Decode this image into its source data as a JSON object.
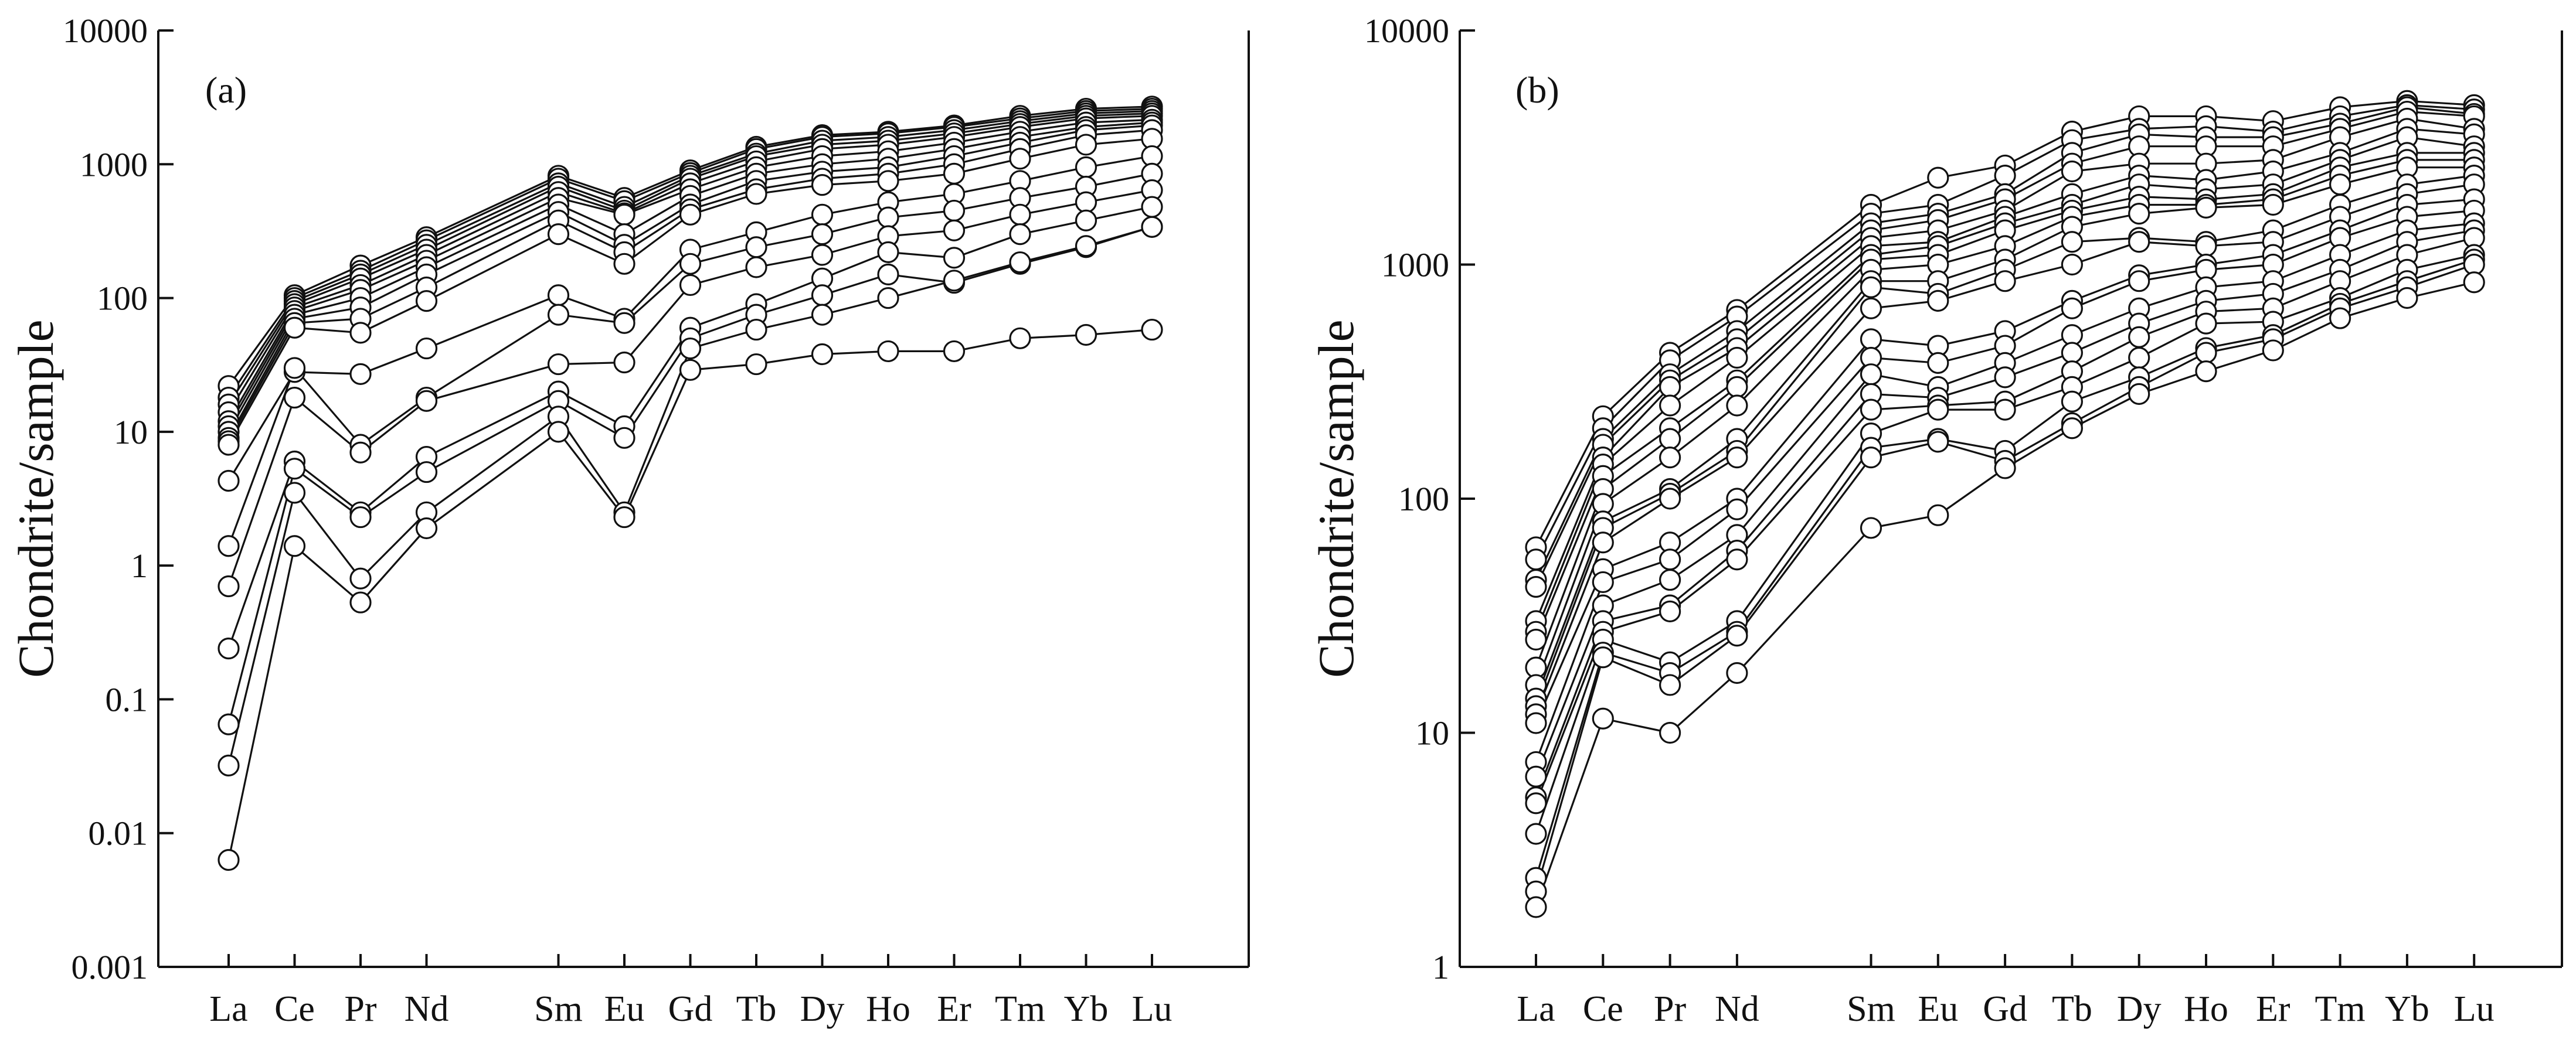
{
  "figure": {
    "ylabel": "Chondrite/sample"
  },
  "chart_data": [
    {
      "type": "line",
      "panel_label": "(a)",
      "ylabel": "Chondrite/sample",
      "yscale": "log",
      "ylim": [
        0.001,
        10000
      ],
      "yticks": [
        0.001,
        0.01,
        0.1,
        1,
        10,
        100,
        1000,
        10000
      ],
      "ytick_labels": [
        "0.001",
        "0.01",
        "0.1",
        "1",
        "10",
        "100",
        "1000",
        "10000"
      ],
      "categories": [
        "La",
        "Ce",
        "Pr",
        "Nd",
        "Sm",
        "Eu",
        "Gd",
        "Tb",
        "Dy",
        "Ho",
        "Er",
        "Tm",
        "Yb",
        "Lu"
      ],
      "category_positions": [
        0,
        1,
        2,
        3,
        5,
        6,
        7,
        8,
        9,
        10,
        11,
        12,
        13,
        14
      ],
      "marker": "open-circle",
      "series": [
        {
          "name": "a1",
          "values": [
            22,
            105,
            175,
            285,
            820,
            560,
            900,
            1350,
            1650,
            1750,
            1950,
            2300,
            2600,
            2700
          ]
        },
        {
          "name": "a2",
          "values": [
            18,
            100,
            160,
            270,
            780,
            530,
            860,
            1300,
            1600,
            1700,
            1900,
            2200,
            2500,
            2600
          ]
        },
        {
          "name": "a3",
          "values": [
            16,
            95,
            150,
            250,
            720,
            480,
            820,
            1200,
            1500,
            1600,
            1800,
            2100,
            2400,
            2500
          ]
        },
        {
          "name": "a4",
          "values": [
            14,
            90,
            140,
            230,
            680,
            450,
            780,
            1150,
            1400,
            1500,
            1700,
            2000,
            2300,
            2400
          ]
        },
        {
          "name": "a5",
          "values": [
            12,
            85,
            125,
            210,
            620,
            430,
            720,
            1050,
            1300,
            1400,
            1600,
            1900,
            2200,
            2300
          ]
        },
        {
          "name": "a6",
          "values": [
            11,
            80,
            115,
            190,
            560,
            420,
            650,
            950,
            1150,
            1250,
            1450,
            1750,
            2050,
            2150
          ]
        },
        {
          "name": "a7",
          "values": [
            10,
            75,
            100,
            170,
            500,
            300,
            580,
            850,
            1000,
            1100,
            1300,
            1600,
            1900,
            2050
          ]
        },
        {
          "name": "a8",
          "values": [
            9,
            70,
            85,
            150,
            440,
            250,
            500,
            750,
            880,
            950,
            1150,
            1450,
            1800,
            1950
          ]
        },
        {
          "name": "a9",
          "values": [
            8.5,
            65,
            70,
            120,
            380,
            220,
            460,
            650,
            780,
            850,
            1000,
            1300,
            1650,
            1800
          ]
        },
        {
          "name": "a10",
          "values": [
            8,
            60,
            55,
            95,
            300,
            180,
            420,
            600,
            700,
            750,
            850,
            1100,
            1400,
            1550
          ]
        },
        {
          "name": "a11",
          "values": [
            4.3,
            28,
            27,
            42,
            105,
            70,
            230,
            310,
            420,
            520,
            600,
            750,
            950,
            1150
          ]
        },
        {
          "name": "a12",
          "values": [
            1.4,
            30,
            8,
            18,
            75,
            65,
            180,
            240,
            300,
            400,
            450,
            560,
            680,
            850
          ]
        },
        {
          "name": "a13",
          "values": [
            0.7,
            18,
            7,
            17,
            32,
            33,
            125,
            170,
            210,
            290,
            320,
            420,
            520,
            640
          ]
        },
        {
          "name": "a14",
          "values": [
            0.24,
            6,
            2.5,
            6.5,
            20,
            11,
            60,
            90,
            140,
            220,
            200,
            300,
            380,
            480
          ]
        },
        {
          "name": "a15",
          "values": [
            0.065,
            5.3,
            2.3,
            5,
            17,
            9,
            50,
            75,
            105,
            150,
            130,
            180,
            240,
            340
          ]
        },
        {
          "name": "a16",
          "values": [
            0.032,
            3.5,
            0.8,
            2.5,
            13,
            2.5,
            42,
            58,
            75,
            100,
            135,
            185,
            245,
            340
          ]
        },
        {
          "name": "a17",
          "values": [
            0.0063,
            1.4,
            0.53,
            1.9,
            10,
            2.3,
            29,
            32,
            38,
            40,
            40,
            50,
            53,
            58
          ]
        }
      ]
    },
    {
      "type": "line",
      "panel_label": "(b)",
      "ylabel": "Chondrite/sample",
      "yscale": "log",
      "ylim": [
        1,
        10000
      ],
      "yticks": [
        1,
        10,
        100,
        1000,
        10000
      ],
      "ytick_labels": [
        "1",
        "10",
        "100",
        "1000",
        "10000"
      ],
      "categories": [
        "La",
        "Ce",
        "Pr",
        "Nd",
        "Sm",
        "Eu",
        "Gd",
        "Tb",
        "Dy",
        "Ho",
        "Er",
        "Tm",
        "Yb",
        "Lu"
      ],
      "category_positions": [
        0,
        1,
        2,
        3,
        5,
        6,
        7,
        8,
        9,
        10,
        11,
        12,
        13,
        14
      ],
      "marker": "open-circle",
      "series": [
        {
          "name": "b1",
          "values": [
            62,
            225,
            420,
            640,
            1800,
            2350,
            2650,
            3700,
            4300,
            4300,
            4100,
            4700,
            5000,
            4800
          ]
        },
        {
          "name": "b2",
          "values": [
            55,
            200,
            390,
            600,
            1650,
            1800,
            2400,
            3400,
            3800,
            3900,
            3700,
            4300,
            4800,
            4600
          ]
        },
        {
          "name": "b3",
          "values": [
            45,
            180,
            340,
            520,
            1500,
            1650,
            2000,
            3000,
            3600,
            3500,
            3500,
            4000,
            4700,
            4400
          ]
        },
        {
          "name": "b4",
          "values": [
            42,
            170,
            320,
            480,
            1400,
            1550,
            1900,
            2700,
            3200,
            3200,
            3200,
            3800,
            4500,
            4300
          ]
        },
        {
          "name": "b5",
          "values": [
            30,
            150,
            300,
            440,
            1300,
            1400,
            1700,
            2500,
            2700,
            2700,
            2800,
            3500,
            4200,
            3800
          ]
        },
        {
          "name": "b6",
          "values": [
            27,
            140,
            250,
            400,
            1200,
            1250,
            1600,
            2000,
            2400,
            2300,
            2500,
            3000,
            3800,
            3600
          ]
        },
        {
          "name": "b7",
          "values": [
            25,
            125,
            200,
            320,
            1100,
            1200,
            1500,
            1800,
            2200,
            2100,
            2200,
            2800,
            3500,
            3200
          ]
        },
        {
          "name": "b8",
          "values": [
            19,
            110,
            180,
            300,
            1050,
            1100,
            1400,
            1700,
            1950,
            1900,
            2000,
            2600,
            3000,
            3000
          ]
        },
        {
          "name": "b9",
          "values": [
            16,
            95,
            150,
            250,
            950,
            1000,
            1200,
            1600,
            1800,
            1800,
            1900,
            2400,
            2800,
            2800
          ]
        },
        {
          "name": "b10",
          "values": [
            14,
            80,
            110,
            180,
            850,
            850,
            1050,
            1450,
            1650,
            1750,
            1800,
            2200,
            2600,
            2600
          ]
        },
        {
          "name": "b11",
          "values": [
            13,
            75,
            105,
            160,
            800,
            750,
            950,
            1250,
            1300,
            1250,
            1400,
            1800,
            2200,
            2400
          ]
        },
        {
          "name": "b12",
          "values": [
            12,
            65,
            100,
            150,
            650,
            700,
            850,
            1000,
            1250,
            1200,
            1250,
            1600,
            2000,
            2200
          ]
        },
        {
          "name": "b13",
          "values": [
            11,
            50,
            65,
            100,
            480,
            450,
            520,
            700,
            900,
            1000,
            1100,
            1400,
            1800,
            1900
          ]
        },
        {
          "name": "b14",
          "values": [
            7.5,
            44,
            55,
            90,
            400,
            380,
            450,
            650,
            850,
            950,
            1000,
            1300,
            1600,
            1700
          ]
        },
        {
          "name": "b15",
          "values": [
            6.5,
            35,
            45,
            70,
            340,
            300,
            380,
            500,
            650,
            800,
            850,
            1100,
            1400,
            1500
          ]
        },
        {
          "name": "b16",
          "values": [
            5.3,
            30,
            35,
            60,
            280,
            270,
            330,
            420,
            560,
            700,
            750,
            950,
            1250,
            1400
          ]
        },
        {
          "name": "b17",
          "values": [
            5,
            27,
            33,
            55,
            240,
            250,
            260,
            350,
            490,
            630,
            650,
            850,
            1100,
            1300
          ]
        },
        {
          "name": "b18",
          "values": [
            3.7,
            25,
            20,
            30,
            190,
            240,
            240,
            300,
            400,
            560,
            570,
            720,
            950,
            1100
          ]
        },
        {
          "name": "b19",
          "values": [
            2.4,
            22,
            18,
            27,
            165,
            180,
            160,
            260,
            330,
            440,
            500,
            680,
            850,
            1050
          ]
        },
        {
          "name": "b20",
          "values": [
            2.1,
            21,
            16,
            26,
            150,
            175,
            145,
            210,
            300,
            420,
            480,
            650,
            800,
            1000
          ]
        },
        {
          "name": "b21",
          "values": [
            1.8,
            11.5,
            10,
            18,
            75,
            85,
            135,
            200,
            280,
            350,
            430,
            590,
            720,
            840
          ]
        }
      ]
    }
  ]
}
